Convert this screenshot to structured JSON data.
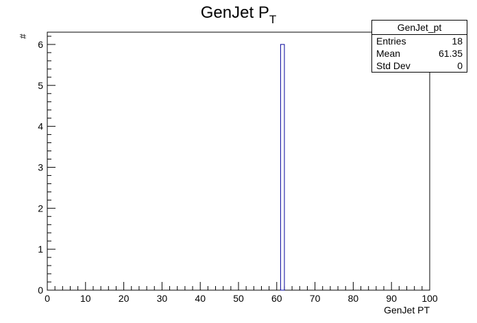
{
  "chart_data": {
    "type": "bar",
    "title": "GenJet P",
    "title_subscript": "T",
    "xlabel": "GenJet PT",
    "ylabel": "#",
    "xlim": [
      0,
      100
    ],
    "ylim": [
      0,
      6.3
    ],
    "bins": 100,
    "x_major_ticks": [
      0,
      10,
      20,
      30,
      40,
      50,
      60,
      70,
      80,
      90,
      100
    ],
    "y_major_ticks": [
      0,
      1,
      2,
      3,
      4,
      5,
      6
    ],
    "bars": [
      {
        "x_low": 61,
        "x_high": 62,
        "value": 6
      }
    ],
    "line_color": "#000099",
    "stats_box": {
      "name": "GenJet_pt",
      "rows": [
        {
          "label": "Entries",
          "value": "18"
        },
        {
          "label": "Mean",
          "value": "61.35"
        },
        {
          "label": "Std Dev",
          "value": "0"
        }
      ]
    }
  }
}
